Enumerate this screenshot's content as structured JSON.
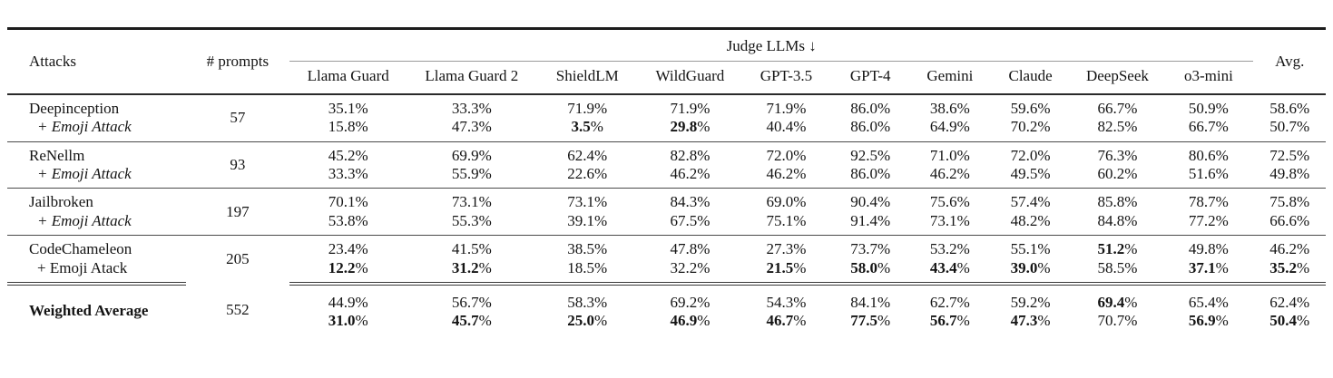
{
  "header": {
    "attacks": "Attacks",
    "prompts": "# prompts",
    "judge_group": "Judge LLMs ↓",
    "judges": [
      "Llama Guard",
      "Llama Guard 2",
      "ShieldLM",
      "WildGuard",
      "GPT-3.5",
      "GPT-4",
      "Gemini",
      "Claude",
      "DeepSeek",
      "o3-mini"
    ],
    "avg": "Avg."
  },
  "percent_sign": "%",
  "groups": [
    {
      "attack": "Deepinception",
      "sub_label": "+ Emoji Attack",
      "sub_italic": true,
      "prompts": "57",
      "base": {
        "values": [
          "35.1",
          "33.3",
          "71.9",
          "71.9",
          "71.9",
          "86.0",
          "38.6",
          "59.6",
          "66.7",
          "50.9",
          "58.6"
        ],
        "bold": []
      },
      "emoji": {
        "values": [
          "15.8",
          "47.3",
          "3.5",
          "29.8",
          "40.4",
          "86.0",
          "64.9",
          "70.2",
          "82.5",
          "66.7",
          "50.7"
        ],
        "bold": [
          2,
          3
        ]
      }
    },
    {
      "attack": "ReNellm",
      "sub_label": "+ Emoji Attack",
      "sub_italic": true,
      "prompts": "93",
      "base": {
        "values": [
          "45.2",
          "69.9",
          "62.4",
          "82.8",
          "72.0",
          "92.5",
          "71.0",
          "72.0",
          "76.3",
          "80.6",
          "72.5"
        ],
        "bold": []
      },
      "emoji": {
        "values": [
          "33.3",
          "55.9",
          "22.6",
          "46.2",
          "46.2",
          "86.0",
          "46.2",
          "49.5",
          "60.2",
          "51.6",
          "49.8"
        ],
        "bold": []
      }
    },
    {
      "attack": "Jailbroken",
      "sub_label": "+ Emoji Attack",
      "sub_italic": true,
      "prompts": "197",
      "base": {
        "values": [
          "70.1",
          "73.1",
          "73.1",
          "84.3",
          "69.0",
          "90.4",
          "75.6",
          "57.4",
          "85.8",
          "78.7",
          "75.8"
        ],
        "bold": []
      },
      "emoji": {
        "values": [
          "53.8",
          "55.3",
          "39.1",
          "67.5",
          "75.1",
          "91.4",
          "73.1",
          "48.2",
          "84.8",
          "77.2",
          "66.6"
        ],
        "bold": []
      }
    },
    {
      "attack": "CodeChameleon",
      "sub_label": "+ Emoji Atack",
      "sub_italic": false,
      "prompts": "205",
      "base": {
        "values": [
          "23.4",
          "41.5",
          "38.5",
          "47.8",
          "27.3",
          "73.7",
          "53.2",
          "55.1",
          "51.2",
          "49.8",
          "46.2"
        ],
        "bold": [
          8
        ]
      },
      "emoji": {
        "values": [
          "12.2",
          "31.2",
          "18.5",
          "32.2",
          "21.5",
          "58.0",
          "43.4",
          "39.0",
          "58.5",
          "37.1",
          "35.2"
        ],
        "bold": [
          0,
          1,
          4,
          5,
          6,
          7,
          9,
          10
        ]
      }
    }
  ],
  "footer": {
    "label": "Weighted Average",
    "prompts": "552",
    "base": {
      "values": [
        "44.9",
        "56.7",
        "58.3",
        "69.2",
        "54.3",
        "84.1",
        "62.7",
        "59.2",
        "69.4",
        "65.4",
        "62.4"
      ],
      "bold": [
        8
      ]
    },
    "emoji": {
      "values": [
        "31.0",
        "45.7",
        "25.0",
        "46.9",
        "46.7",
        "77.5",
        "56.7",
        "47.3",
        "70.7",
        "56.9",
        "50.4"
      ],
      "bold": [
        0,
        1,
        2,
        3,
        4,
        5,
        6,
        7,
        9,
        10
      ]
    }
  }
}
